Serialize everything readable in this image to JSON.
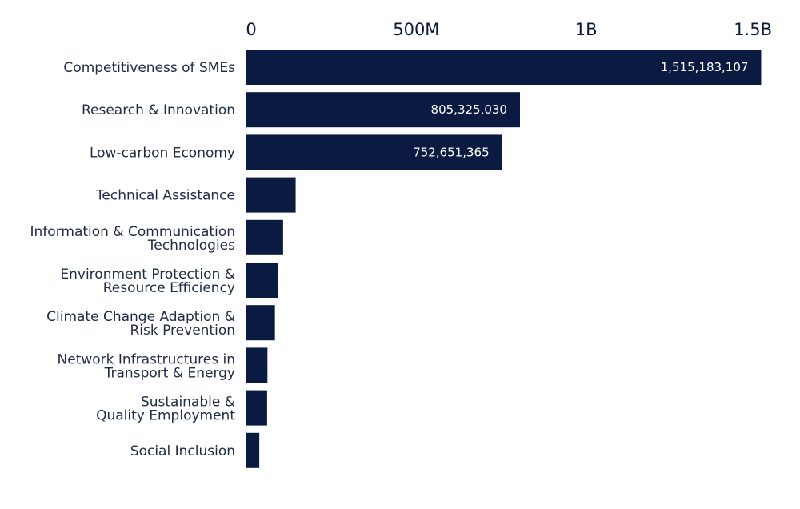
{
  "chart_data": {
    "type": "bar",
    "orientation": "horizontal",
    "categories": [
      [
        "Competitiveness of SMEs"
      ],
      [
        "Research & Innovation"
      ],
      [
        "Low-carbon Economy"
      ],
      [
        "Technical Assistance"
      ],
      [
        "Information & Communication",
        "Technologies"
      ],
      [
        "Environment Protection &",
        "Resource Efficiency"
      ],
      [
        "Climate Change Adaption &",
        "Risk Prevention"
      ],
      [
        "Network Infrastructures in",
        "Transport & Energy"
      ],
      [
        "Sustainable &",
        "Quality Employment"
      ],
      [
        "Social Inclusion"
      ]
    ],
    "values": [
      1515183107,
      805325030,
      752651365,
      145000000,
      108000000,
      92000000,
      84000000,
      62000000,
      61000000,
      38000000
    ],
    "data_labels": [
      "1,515,183,107",
      "805,325,030",
      "752,651,365",
      "",
      "",
      "",
      "",
      "",
      "",
      ""
    ],
    "xlim": [
      0,
      1500000000
    ],
    "ticks": [
      0,
      500000000,
      1000000000,
      1500000000
    ],
    "tick_labels": [
      "0",
      "500M",
      "1B",
      "1.5B"
    ],
    "axis_position": "top",
    "grid": false,
    "bar_color": "#0b1a40"
  }
}
